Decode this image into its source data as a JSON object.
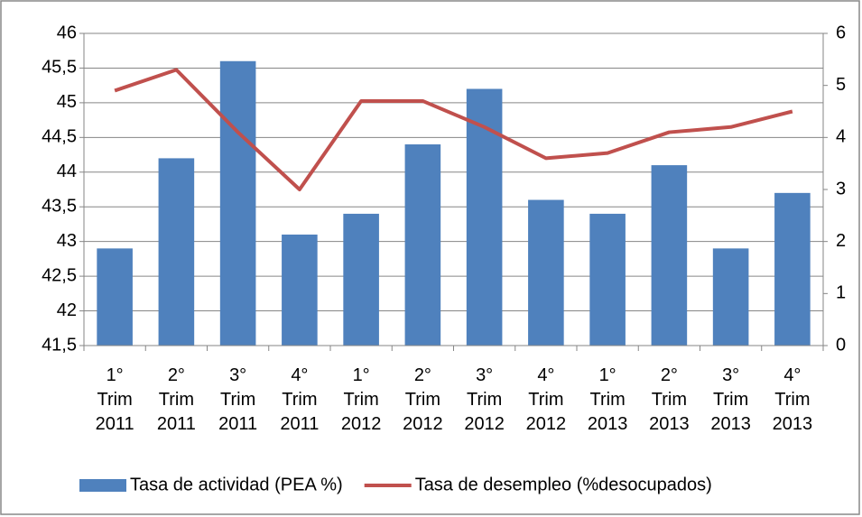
{
  "chart_data": {
    "type": "bar",
    "categories": [
      "1° Trim 2011",
      "2° Trim 2011",
      "3° Trim 2011",
      "4° Trim 2011",
      "1° Trim 2012",
      "2° Trim 2012",
      "3° Trim 2012",
      "4° Trim 2012",
      "1° Trim 2013",
      "2° Trim 2013",
      "3° Trim 2013",
      "4° Trim 2013"
    ],
    "series": [
      {
        "name": "Tasa de actividad (PEA %)",
        "type": "bar",
        "color": "#4f81bd",
        "values": [
          42.9,
          44.2,
          45.6,
          43.1,
          43.4,
          44.4,
          45.2,
          43.6,
          43.4,
          44.1,
          42.9,
          43.7
        ]
      },
      {
        "name": "Tasa de desempleo (%desocupados)",
        "type": "line",
        "axis": "y2",
        "color": "#c0504d",
        "values": [
          4.9,
          5.3,
          4.1,
          3.0,
          4.7,
          4.7,
          4.2,
          3.6,
          3.7,
          4.1,
          4.2,
          4.5
        ]
      }
    ],
    "ylim": [
      41.5,
      46
    ],
    "yticks": [
      {
        "value": 41.5,
        "label": "41,5"
      },
      42,
      {
        "value": 42.5,
        "label": "42,5"
      },
      43,
      {
        "value": 43.5,
        "label": "43,5"
      },
      44,
      {
        "value": 44.5,
        "label": "44,5"
      },
      45,
      {
        "value": 45.5,
        "label": "45,5"
      },
      46
    ],
    "y2lim": [
      0,
      6
    ],
    "y2ticks": [
      0,
      1,
      2,
      3,
      4,
      5,
      6
    ],
    "grid": true,
    "legend": "bottom"
  }
}
